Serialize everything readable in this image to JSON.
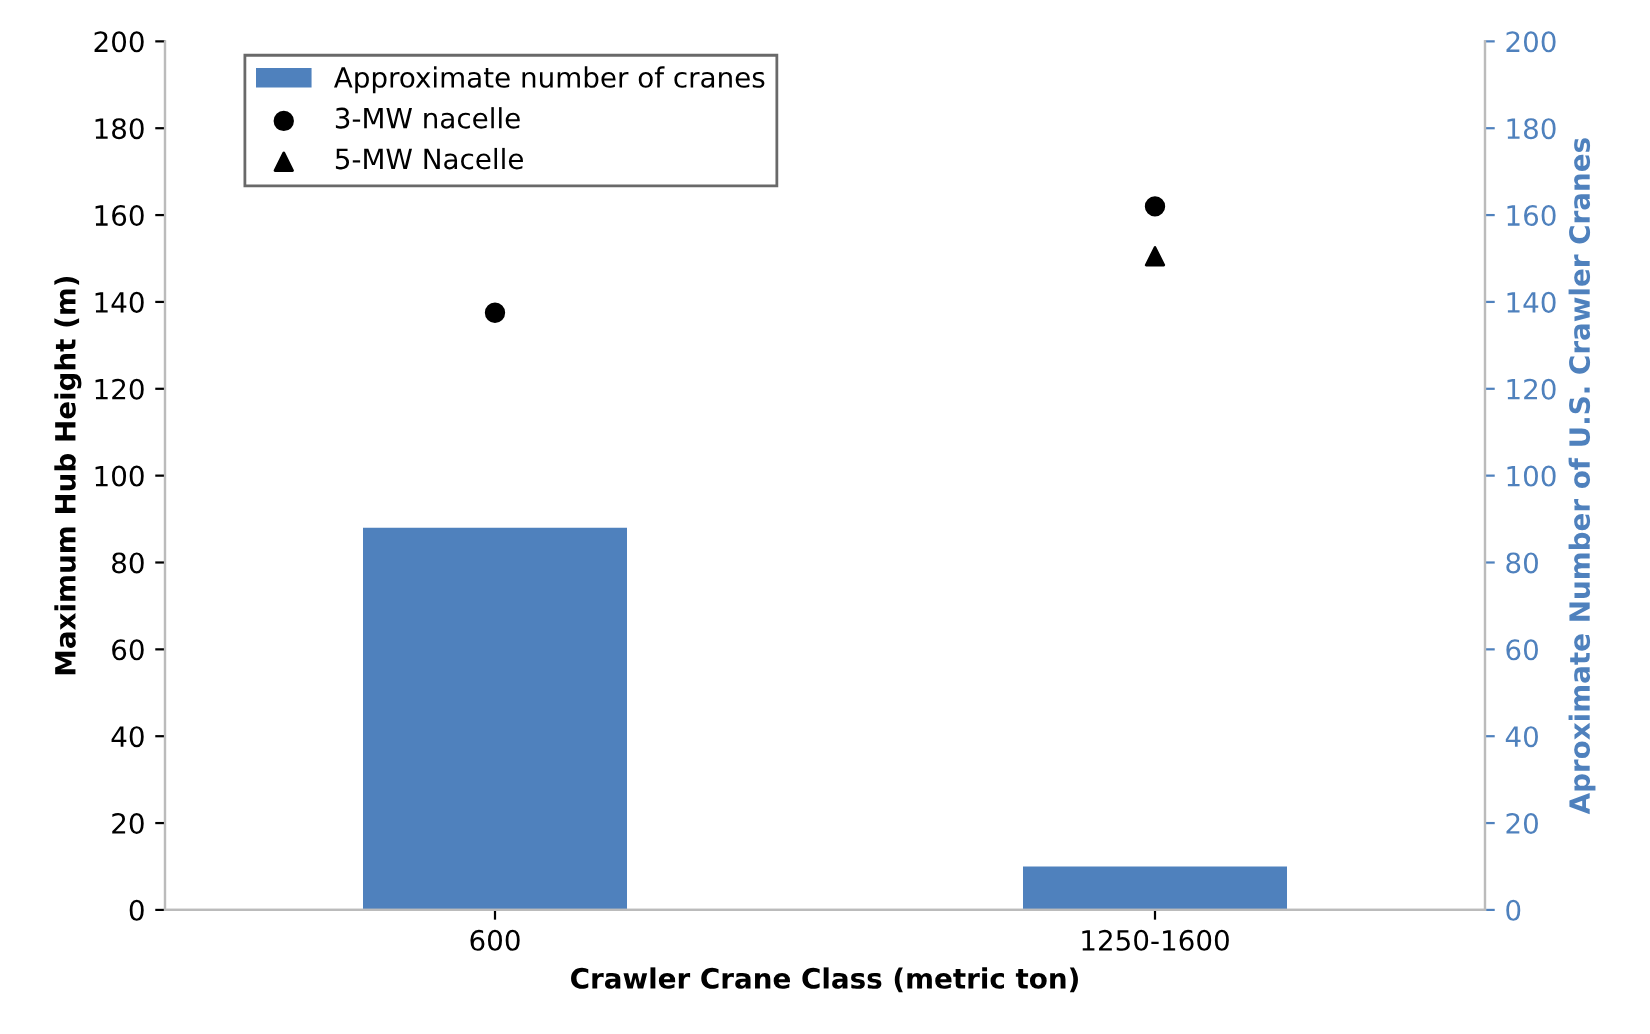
{
  "chart_data": {
    "type": "bar",
    "xlabel": "Crawler Crane Class (metric ton)",
    "ylabel": "Maximum Hub Height (m)",
    "y2label": "Aproximate Number of U.S. Crawler Cranes",
    "categories": [
      "600",
      "1250-1600"
    ],
    "series": [
      {
        "name": "Approximate number of cranes",
        "axis": "y2",
        "color": "#4f81bd",
        "values": [
          88,
          10
        ]
      },
      {
        "name": "3-MW nacelle",
        "type": "scatter",
        "marker": "circle",
        "color": "#000000",
        "values": [
          137.5,
          162
        ]
      },
      {
        "name": "5-MW Nacelle",
        "type": "scatter",
        "marker": "triangle",
        "color": "#000000",
        "values": [
          null,
          150.5
        ]
      }
    ],
    "ylim": [
      0,
      200
    ],
    "yticks": [
      0,
      20,
      40,
      60,
      80,
      100,
      120,
      140,
      160,
      180,
      200
    ],
    "y2lim": [
      0,
      200
    ],
    "y2ticks": [
      0,
      20,
      40,
      60,
      80,
      100,
      120,
      140,
      160,
      180,
      200
    ],
    "legend": "top left",
    "grid": false
  }
}
